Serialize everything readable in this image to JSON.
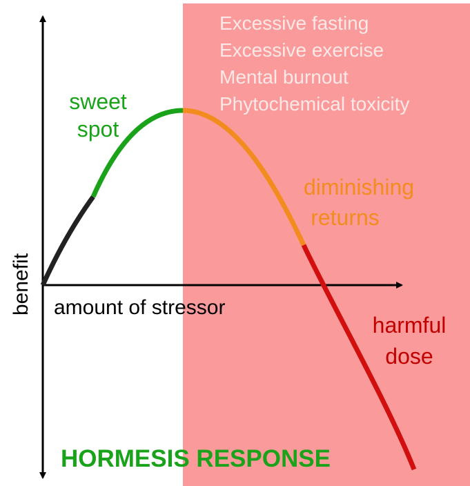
{
  "stressors": [
    "Excessive fasting",
    "Excessive exercise",
    "Mental burnout",
    "Phytochemical toxicity"
  ],
  "sweet_spot": [
    "sweet",
    "spot"
  ],
  "diminishing_returns": [
    "diminishing",
    "returns"
  ],
  "harmful_dose": [
    "harmful",
    "dose"
  ],
  "x_axis_label": "amount of stressor",
  "y_axis_label": "benefit",
  "title": "HORMESIS RESPONSE"
}
